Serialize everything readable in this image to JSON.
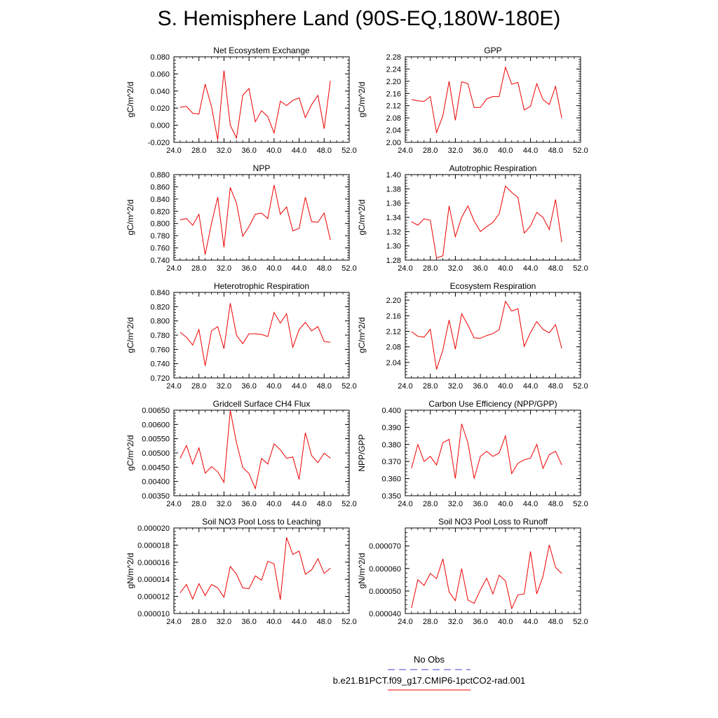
{
  "title": "S. Hemisphere Land (90S-EQ,180W-180E)",
  "legend": {
    "obs_label": "No Obs",
    "model_label": "b.e21.B1PCT.f09_g17.CMIP6-1pctCO2-rad.001",
    "obs_color": "#6666dd",
    "model_color": "#ee0000"
  },
  "chart_data": [
    {
      "type": "line",
      "title": "Net Ecosystem Exchange",
      "ylabel": "gC/m^2/d",
      "xlim": [
        24,
        52
      ],
      "ylim": [
        -0.02,
        0.08
      ],
      "xticks": [
        "24.0",
        "28.0",
        "32.0",
        "36.0",
        "40.0",
        "44.0",
        "48.0",
        "52.0"
      ],
      "yticks": [
        "-0.020",
        "0.000",
        "0.020",
        "0.040",
        "0.060",
        "0.080"
      ],
      "x": [
        25,
        26,
        27,
        28,
        29,
        30,
        31,
        32,
        33,
        34,
        35,
        36,
        37,
        38,
        39,
        40,
        41,
        42,
        43,
        44,
        45,
        46,
        47,
        48,
        49
      ],
      "series": [
        {
          "values": [
            0.021,
            0.022,
            0.014,
            0.013,
            0.048,
            0.022,
            -0.017,
            0.064,
            0.0,
            -0.015,
            0.035,
            0.043,
            0.004,
            0.017,
            0.01,
            -0.009,
            0.028,
            0.023,
            0.029,
            0.032,
            0.009,
            0.024,
            0.035,
            -0.004,
            0.052
          ]
        }
      ]
    },
    {
      "type": "line",
      "title": "GPP",
      "ylabel": "gC/m^2/d",
      "xlim": [
        24,
        52
      ],
      "ylim": [
        2.0,
        2.28
      ],
      "xticks": [
        "24.0",
        "28.0",
        "32.0",
        "36.0",
        "40.0",
        "44.0",
        "48.0",
        "52.0"
      ],
      "yticks": [
        "2.00",
        "2.04",
        "2.08",
        "2.12",
        "2.16",
        "2.20",
        "2.24",
        "2.28"
      ],
      "x": [
        25,
        26,
        27,
        28,
        29,
        30,
        31,
        32,
        33,
        34,
        35,
        36,
        37,
        38,
        39,
        40,
        41,
        42,
        43,
        44,
        45,
        46,
        47,
        48,
        49
      ],
      "series": [
        {
          "values": [
            2.14,
            2.136,
            2.134,
            2.15,
            2.032,
            2.087,
            2.2,
            2.072,
            2.198,
            2.192,
            2.114,
            2.114,
            2.142,
            2.15,
            2.15,
            2.246,
            2.19,
            2.196,
            2.106,
            2.118,
            2.192,
            2.14,
            2.124,
            2.183,
            2.079
          ]
        }
      ]
    },
    {
      "type": "line",
      "title": "NPP",
      "ylabel": "gC/m^2/d",
      "xlim": [
        24,
        52
      ],
      "ylim": [
        0.74,
        0.88
      ],
      "xticks": [
        "24.0",
        "28.0",
        "32.0",
        "36.0",
        "40.0",
        "44.0",
        "48.0",
        "52.0"
      ],
      "yticks": [
        "0.740",
        "0.760",
        "0.780",
        "0.800",
        "0.820",
        "0.840",
        "0.860",
        "0.880"
      ],
      "x": [
        25,
        26,
        27,
        28,
        29,
        30,
        31,
        32,
        33,
        34,
        35,
        36,
        37,
        38,
        39,
        40,
        41,
        42,
        43,
        44,
        45,
        46,
        47,
        48,
        49
      ],
      "series": [
        {
          "values": [
            0.806,
            0.808,
            0.797,
            0.815,
            0.749,
            0.8,
            0.843,
            0.761,
            0.859,
            0.833,
            0.779,
            0.795,
            0.815,
            0.817,
            0.808,
            0.863,
            0.815,
            0.827,
            0.788,
            0.792,
            0.843,
            0.803,
            0.802,
            0.817,
            0.773
          ]
        }
      ]
    },
    {
      "type": "line",
      "title": "Autotrophic Respiration",
      "ylabel": "gC/m^2/d",
      "xlim": [
        24,
        52
      ],
      "ylim": [
        1.28,
        1.4
      ],
      "xticks": [
        "24.0",
        "28.0",
        "32.0",
        "36.0",
        "40.0",
        "44.0",
        "48.0",
        "52.0"
      ],
      "yticks": [
        "1.28",
        "1.30",
        "1.32",
        "1.34",
        "1.36",
        "1.38",
        "1.40"
      ],
      "x": [
        25,
        26,
        27,
        28,
        29,
        30,
        31,
        32,
        33,
        34,
        35,
        36,
        37,
        38,
        39,
        40,
        41,
        42,
        43,
        44,
        45,
        46,
        47,
        48,
        49
      ],
      "series": [
        {
          "values": [
            1.334,
            1.329,
            1.338,
            1.336,
            1.283,
            1.286,
            1.356,
            1.313,
            1.34,
            1.356,
            1.335,
            1.32,
            1.327,
            1.333,
            1.345,
            1.384,
            1.375,
            1.368,
            1.318,
            1.328,
            1.347,
            1.34,
            1.323,
            1.365,
            1.305
          ]
        }
      ]
    },
    {
      "type": "line",
      "title": "Heterotrophic Respiration",
      "ylabel": "gC/m^2/d",
      "xlim": [
        24,
        52
      ],
      "ylim": [
        0.72,
        0.84
      ],
      "xticks": [
        "24.0",
        "28.0",
        "32.0",
        "36.0",
        "40.0",
        "44.0",
        "48.0",
        "52.0"
      ],
      "yticks": [
        "0.720",
        "0.740",
        "0.760",
        "0.780",
        "0.800",
        "0.820",
        "0.840"
      ],
      "x": [
        25,
        26,
        27,
        28,
        29,
        30,
        31,
        32,
        33,
        34,
        35,
        36,
        37,
        38,
        39,
        40,
        41,
        42,
        43,
        44,
        45,
        46,
        47,
        48,
        49
      ],
      "series": [
        {
          "values": [
            0.784,
            0.777,
            0.766,
            0.788,
            0.737,
            0.786,
            0.792,
            0.761,
            0.825,
            0.78,
            0.768,
            0.782,
            0.782,
            0.781,
            0.778,
            0.812,
            0.797,
            0.81,
            0.763,
            0.788,
            0.798,
            0.786,
            0.792,
            0.771,
            0.77
          ]
        }
      ]
    },
    {
      "type": "line",
      "title": "Ecosystem Respiration",
      "ylabel": "gC/m^2/d",
      "xlim": [
        24,
        52
      ],
      "ylim": [
        2.0,
        2.22
      ],
      "xticks": [
        "24.0",
        "28.0",
        "32.0",
        "36.0",
        "40.0",
        "44.0",
        "48.0",
        "52.0"
      ],
      "yticks": [
        "2.04",
        "2.08",
        "2.12",
        "2.16",
        "2.20"
      ],
      "x": [
        25,
        26,
        27,
        28,
        29,
        30,
        31,
        32,
        33,
        34,
        35,
        36,
        37,
        38,
        39,
        40,
        41,
        42,
        43,
        44,
        45,
        46,
        47,
        48,
        49
      ],
      "series": [
        {
          "values": [
            2.119,
            2.107,
            2.105,
            2.125,
            2.022,
            2.072,
            2.149,
            2.074,
            2.165,
            2.136,
            2.103,
            2.102,
            2.109,
            2.114,
            2.124,
            2.197,
            2.172,
            2.178,
            2.081,
            2.117,
            2.145,
            2.125,
            2.116,
            2.137,
            2.076
          ]
        }
      ]
    },
    {
      "type": "line",
      "title": "Gridcell Surface CH4 Flux",
      "ylabel": "gC/m^2/d",
      "xlim": [
        24,
        52
      ],
      "ylim": [
        0.0035,
        0.0065
      ],
      "xticks": [
        "24.0",
        "28.0",
        "32.0",
        "36.0",
        "40.0",
        "44.0",
        "48.0",
        "52.0"
      ],
      "yticks": [
        "0.00350",
        "0.00400",
        "0.00450",
        "0.00500",
        "0.00550",
        "0.00600",
        "0.00650"
      ],
      "x": [
        25,
        26,
        27,
        28,
        29,
        30,
        31,
        32,
        33,
        34,
        35,
        36,
        37,
        38,
        39,
        40,
        41,
        42,
        43,
        44,
        45,
        46,
        47,
        48,
        49
      ],
      "series": [
        {
          "values": [
            0.00481,
            0.00526,
            0.00461,
            0.00518,
            0.00429,
            0.00452,
            0.00434,
            0.00397,
            0.00649,
            0.00536,
            0.00449,
            0.00428,
            0.00375,
            0.00481,
            0.00461,
            0.00532,
            0.00511,
            0.00481,
            0.00486,
            0.00407,
            0.00571,
            0.00491,
            0.00466,
            0.00499,
            0.00482
          ]
        }
      ]
    },
    {
      "type": "line",
      "title": "Carbon Use Efficiency (NPP/GPP)",
      "ylabel": "NPP/GPP",
      "xlim": [
        24,
        52
      ],
      "ylim": [
        0.35,
        0.4
      ],
      "xticks": [
        "24.0",
        "28.0",
        "32.0",
        "36.0",
        "40.0",
        "44.0",
        "48.0",
        "52.0"
      ],
      "yticks": [
        "0.350",
        "0.360",
        "0.370",
        "0.380",
        "0.390",
        "0.400"
      ],
      "x": [
        25,
        26,
        27,
        28,
        29,
        30,
        31,
        32,
        33,
        34,
        35,
        36,
        37,
        38,
        39,
        40,
        41,
        42,
        43,
        44,
        45,
        46,
        47,
        48,
        49
      ],
      "series": [
        {
          "values": [
            0.366,
            0.38,
            0.37,
            0.373,
            0.368,
            0.381,
            0.383,
            0.36,
            0.392,
            0.381,
            0.36,
            0.373,
            0.376,
            0.373,
            0.375,
            0.385,
            0.363,
            0.369,
            0.371,
            0.372,
            0.38,
            0.366,
            0.374,
            0.376,
            0.368
          ]
        }
      ]
    },
    {
      "type": "line",
      "title": "Soil NO3 Pool Loss to Leaching",
      "ylabel": "gN/m^2/d",
      "xlim": [
        24,
        52
      ],
      "ylim": [
        1e-05,
        2e-05
      ],
      "xticks": [
        "24.0",
        "28.0",
        "32.0",
        "36.0",
        "40.0",
        "44.0",
        "48.0",
        "52.0"
      ],
      "yticks": [
        "0.000010",
        "0.000012",
        "0.000014",
        "0.000016",
        "0.000018",
        "0.000020"
      ],
      "x": [
        25,
        26,
        27,
        28,
        29,
        30,
        31,
        32,
        33,
        34,
        35,
        36,
        37,
        38,
        39,
        40,
        41,
        42,
        43,
        44,
        45,
        46,
        47,
        48,
        49
      ],
      "series": [
        {
          "values": [
            1.24e-05,
            1.34e-05,
            1.17e-05,
            1.35e-05,
            1.21e-05,
            1.34e-05,
            1.3e-05,
            1.19e-05,
            1.55e-05,
            1.46e-05,
            1.3e-05,
            1.29e-05,
            1.44e-05,
            1.39e-05,
            1.61e-05,
            1.58e-05,
            1.16e-05,
            1.89e-05,
            1.69e-05,
            1.73e-05,
            1.46e-05,
            1.51e-05,
            1.64e-05,
            1.47e-05,
            1.53e-05
          ]
        }
      ]
    },
    {
      "type": "line",
      "title": "Soil NO3 Pool Loss to Runoff",
      "ylabel": "gN/m^2/d",
      "xlim": [
        24,
        52
      ],
      "ylim": [
        4e-05,
        7.8e-05
      ],
      "xticks": [
        "24.0",
        "28.0",
        "32.0",
        "36.0",
        "40.0",
        "44.0",
        "48.0",
        "52.0"
      ],
      "yticks": [
        "0.000040",
        "0.000050",
        "0.000060",
        "0.000070"
      ],
      "x": [
        25,
        26,
        27,
        28,
        29,
        30,
        31,
        32,
        33,
        34,
        35,
        36,
        37,
        38,
        39,
        40,
        41,
        42,
        43,
        44,
        45,
        46,
        47,
        48,
        49
      ],
      "series": [
        {
          "values": [
            4.25e-05,
            5.5e-05,
            5.25e-05,
            5.78e-05,
            5.55e-05,
            6.43e-05,
            4.96e-05,
            4.57e-05,
            6e-05,
            4.6e-05,
            4.45e-05,
            5.05e-05,
            5.57e-05,
            4.87e-05,
            5.7e-05,
            5.45e-05,
            4.22e-05,
            4.83e-05,
            4.87e-05,
            6.76e-05,
            4.87e-05,
            5.65e-05,
            7.05e-05,
            6.05e-05,
            5.78e-05
          ]
        }
      ]
    }
  ]
}
